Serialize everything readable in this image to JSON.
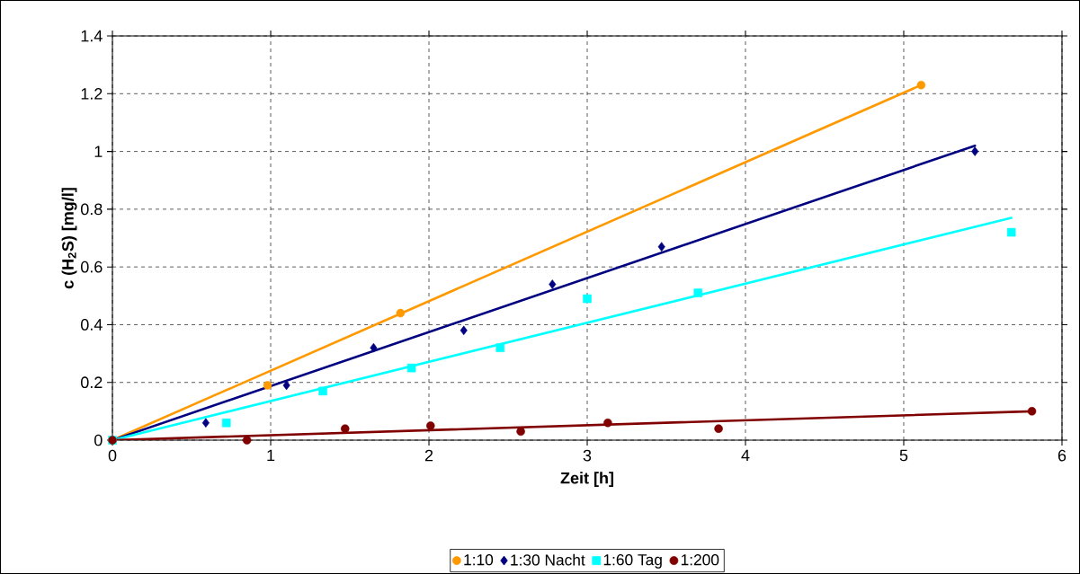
{
  "chart_data": {
    "type": "scatter",
    "xlabel": "Zeit [h]",
    "ylabel": "c (H$_{2}$S) [mg/l]",
    "xlim": [
      0,
      6
    ],
    "ylim": [
      0,
      1.4
    ],
    "xticks": [
      0,
      1,
      2,
      3,
      4,
      5,
      6
    ],
    "yticks": [
      0,
      0.2,
      0.4,
      0.6,
      0.8,
      1,
      1.2,
      1.4
    ],
    "grid": true,
    "legend": "bottom",
    "series": [
      {
        "name": "1:10",
        "color": "#ff9900",
        "marker": "circle",
        "x": [
          0,
          0.98,
          1.82,
          5.11
        ],
        "values": [
          0,
          0.19,
          0.44,
          1.23
        ]
      },
      {
        "name": "1:30 Nacht",
        "color": "#000080",
        "marker": "diamond",
        "x": [
          0,
          0.59,
          1.1,
          1.65,
          2.22,
          2.78,
          3.47,
          5.45
        ],
        "values": [
          0,
          0.06,
          0.19,
          0.32,
          0.38,
          0.54,
          0.67,
          1.0
        ]
      },
      {
        "name": "1:60 Tag",
        "color": "#00ffff",
        "marker": "square",
        "x": [
          0,
          0.72,
          1.33,
          1.89,
          2.45,
          3.0,
          3.7,
          5.68
        ],
        "values": [
          0,
          0.06,
          0.17,
          0.25,
          0.32,
          0.49,
          0.51,
          0.72
        ]
      },
      {
        "name": "1:200",
        "color": "#800000",
        "marker": "circle",
        "x": [
          0,
          0.85,
          1.47,
          2.01,
          2.58,
          3.13,
          3.83,
          5.81
        ],
        "values": [
          0,
          0,
          0.04,
          0.05,
          0.03,
          0.06,
          0.04,
          0.1
        ]
      },
      {
        "type": "line",
        "color": "#ff9900",
        "marker": "none",
        "x": [
          0,
          5.11
        ],
        "values": [
          0,
          1.23
        ]
      },
      {
        "type": "line",
        "color": "#000080",
        "marker": "none",
        "x": [
          0,
          5.45
        ],
        "values": [
          0,
          1.02
        ]
      },
      {
        "type": "line",
        "color": "#00ffff",
        "marker": "none",
        "x": [
          0,
          5.68
        ],
        "values": [
          0,
          0.77
        ]
      },
      {
        "type": "line",
        "color": "#800000",
        "marker": "none",
        "x": [
          0,
          5.81
        ],
        "values": [
          0,
          0.1
        ]
      }
    ]
  }
}
